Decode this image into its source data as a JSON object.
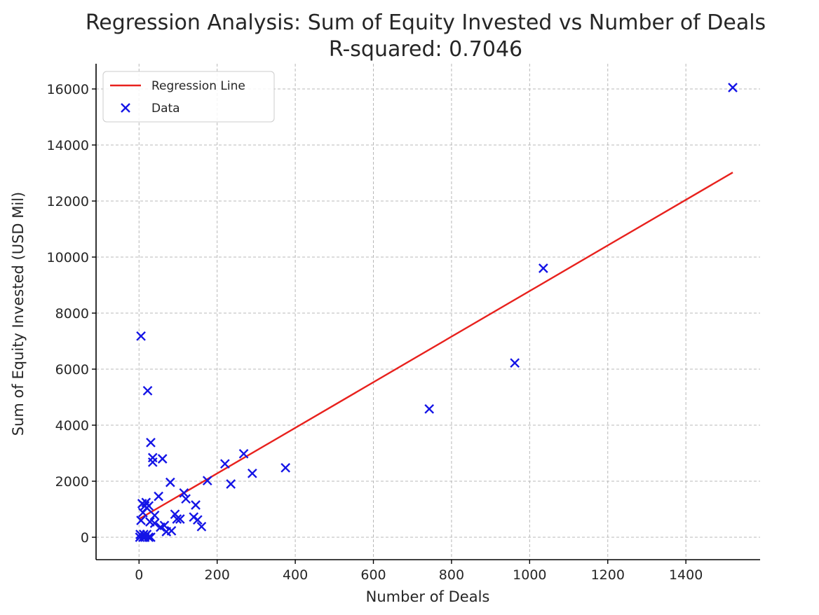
{
  "chart_data": {
    "type": "scatter",
    "title": "Regression Analysis: Sum of Equity Invested vs Number of Deals",
    "subtitle": "R-squared: 0.7046",
    "xlabel": "Number of Deals",
    "ylabel": "Sum of Equity Invested (USD Mil)",
    "xlim": [
      -110,
      1590
    ],
    "ylim": [
      -800,
      16900
    ],
    "x_ticks": [
      0,
      200,
      400,
      600,
      800,
      1000,
      1200,
      1400
    ],
    "y_ticks": [
      0,
      2000,
      4000,
      6000,
      8000,
      10000,
      12000,
      14000,
      16000
    ],
    "grid": true,
    "legend_position": "top-left",
    "colors": {
      "regression_line": "#e8211d",
      "data_markers": "#1414e6"
    },
    "series": [
      {
        "name": "Regression Line",
        "type": "line",
        "x": [
          0,
          1520
        ],
        "y": [
          650,
          13020
        ]
      },
      {
        "name": "Data",
        "type": "scatter",
        "marker": "x",
        "x": [
          1520,
          1035,
          962,
          743,
          375,
          290,
          268,
          235,
          220,
          175,
          160,
          150,
          145,
          140,
          120,
          115,
          105,
          97,
          92,
          83,
          80,
          70,
          65,
          60,
          55,
          50,
          40,
          40,
          35,
          35,
          30,
          30,
          28,
          25,
          25,
          22,
          20,
          20,
          18,
          15,
          15,
          12,
          10,
          10,
          8,
          5,
          5,
          3,
          2
        ],
        "y": [
          16050,
          9600,
          6220,
          4580,
          2480,
          2280,
          2980,
          1900,
          2620,
          2020,
          380,
          620,
          1150,
          720,
          1370,
          1580,
          650,
          650,
          820,
          230,
          1960,
          200,
          420,
          2800,
          360,
          1460,
          500,
          780,
          2680,
          2840,
          0,
          3380,
          550,
          1120,
          0,
          5230,
          1050,
          100,
          1240,
          0,
          1120,
          100,
          880,
          0,
          1200,
          7180,
          600,
          100,
          0
        ]
      }
    ]
  }
}
